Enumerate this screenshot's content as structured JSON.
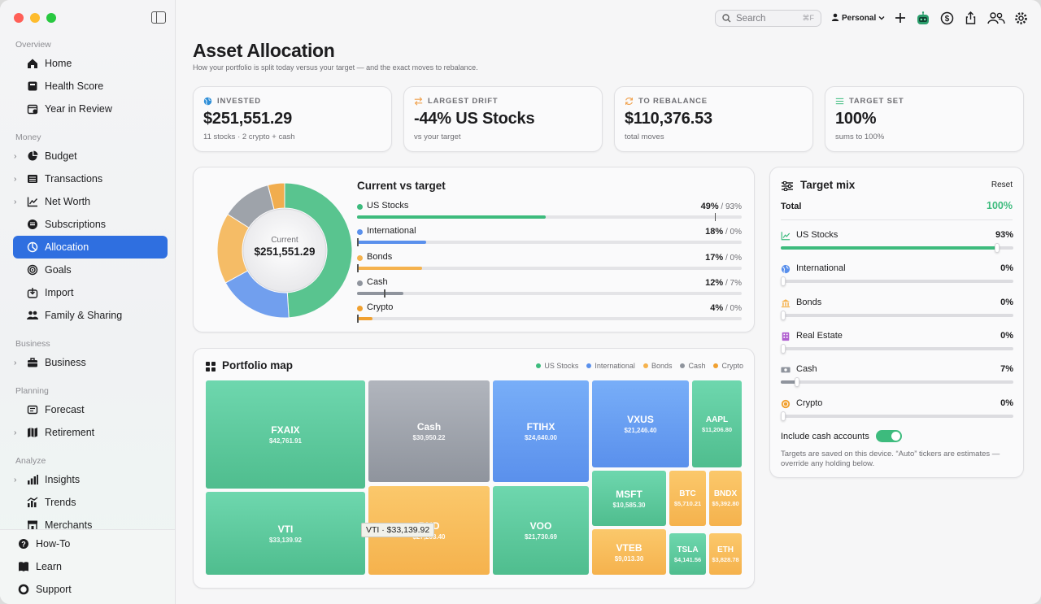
{
  "sidebar": {
    "sections": [
      {
        "title": "Overview",
        "items": [
          {
            "label": "Home",
            "icon": "home-icon",
            "chevron": false,
            "active": false
          },
          {
            "label": "Health Score",
            "icon": "health-score-icon",
            "chevron": false,
            "active": false
          },
          {
            "label": "Year in Review",
            "icon": "calendar-icon",
            "chevron": false,
            "active": false
          }
        ]
      },
      {
        "title": "Money",
        "items": [
          {
            "label": "Budget",
            "icon": "pie-icon",
            "chevron": true,
            "active": false
          },
          {
            "label": "Transactions",
            "icon": "list-icon",
            "chevron": true,
            "active": false
          },
          {
            "label": "Net Worth",
            "icon": "chart-line-icon",
            "chevron": true,
            "active": false
          },
          {
            "label": "Subscriptions",
            "icon": "subscriptions-icon",
            "chevron": false,
            "active": false
          },
          {
            "label": "Allocation",
            "icon": "allocation-icon",
            "chevron": false,
            "active": true
          },
          {
            "label": "Goals",
            "icon": "target-icon",
            "chevron": false,
            "active": false
          },
          {
            "label": "Import",
            "icon": "import-icon",
            "chevron": false,
            "active": false
          },
          {
            "label": "Family & Sharing",
            "icon": "people-icon",
            "chevron": false,
            "active": false
          }
        ]
      },
      {
        "title": "Business",
        "items": [
          {
            "label": "Business",
            "icon": "briefcase-icon",
            "chevron": true,
            "active": false
          }
        ]
      },
      {
        "title": "Planning",
        "items": [
          {
            "label": "Forecast",
            "icon": "forecast-icon",
            "chevron": false,
            "active": false
          },
          {
            "label": "Retirement",
            "icon": "map-icon",
            "chevron": true,
            "active": false
          }
        ]
      },
      {
        "title": "Analyze",
        "items": [
          {
            "label": "Insights",
            "icon": "bars-icon",
            "chevron": true,
            "active": false
          },
          {
            "label": "Trends",
            "icon": "trends-icon",
            "chevron": false,
            "active": false
          },
          {
            "label": "Merchants",
            "icon": "store-icon",
            "chevron": false,
            "active": false
          }
        ]
      }
    ],
    "bottom": [
      {
        "label": "How-To",
        "icon": "question-icon"
      },
      {
        "label": "Learn",
        "icon": "book-icon"
      },
      {
        "label": "Support",
        "icon": "lifebuoy-icon"
      }
    ]
  },
  "toolbar": {
    "search_placeholder": "Search",
    "search_shortcut": "⌘F",
    "profile": "Personal"
  },
  "page": {
    "title": "Asset Allocation",
    "subtitle": "How your portfolio is split today versus your target — and the exact moves to rebalance."
  },
  "kpis": [
    {
      "label": "INVESTED",
      "value": "$251,551.29",
      "sub": "11 stocks · 2 crypto + cash",
      "icon": "globe-icon",
      "color": "#2f8fd8"
    },
    {
      "label": "LARGEST DRIFT",
      "value": "-44% US Stocks",
      "sub": "vs your target",
      "icon": "swap-icon",
      "color": "#f0a04b"
    },
    {
      "label": "TO REBALANCE",
      "value": "$110,376.53",
      "sub": "total moves",
      "icon": "refresh-icon",
      "color": "#f0a04b"
    },
    {
      "label": "TARGET SET",
      "value": "100%",
      "sub": "sums to 100%",
      "icon": "sliders-icon",
      "color": "#3dbb7d"
    }
  ],
  "current_vs_target": {
    "title": "Current vs target",
    "center_label": "Current",
    "center_value": "$251,551.29",
    "rows": [
      {
        "name": "US Stocks",
        "current": 49,
        "target": 93,
        "current_label": "49%",
        "target_label": "/ 93%",
        "color": "#3dbb7d"
      },
      {
        "name": "International",
        "current": 18,
        "target": 0,
        "current_label": "18%",
        "target_label": "/ 0%",
        "color": "#5a90ec"
      },
      {
        "name": "Bonds",
        "current": 17,
        "target": 0,
        "current_label": "17%",
        "target_label": "/ 0%",
        "color": "#f5b24d"
      },
      {
        "name": "Cash",
        "current": 12,
        "target": 7,
        "current_label": "12%",
        "target_label": "/ 7%",
        "color": "#8f949d"
      },
      {
        "name": "Crypto",
        "current": 4,
        "target": 0,
        "current_label": "4%",
        "target_label": "/ 0%",
        "color": "#f0a030"
      }
    ]
  },
  "portfolio_map": {
    "title": "Portfolio map",
    "legend": [
      {
        "name": "US Stocks",
        "color": "#3dbb7d"
      },
      {
        "name": "International",
        "color": "#5a90ec"
      },
      {
        "name": "Bonds",
        "color": "#f5b24d"
      },
      {
        "name": "Cash",
        "color": "#8f949d"
      },
      {
        "name": "Crypto",
        "color": "#f0a030"
      }
    ],
    "tiles": [
      {
        "name": "FXAIX",
        "value": "$42,761.91"
      },
      {
        "name": "VTI",
        "value": "$33,139.92"
      },
      {
        "name": "Cash",
        "value": "$30,950.22"
      },
      {
        "name": "BND",
        "value": "$27,203.40"
      },
      {
        "name": "FTIHX",
        "value": "$24,640.00"
      },
      {
        "name": "VOO",
        "value": "$21,730.69"
      },
      {
        "name": "VXUS",
        "value": "$21,246.40"
      },
      {
        "name": "AAPL",
        "value": "$11,206.80"
      },
      {
        "name": "MSFT",
        "value": "$10,585.30"
      },
      {
        "name": "VTEB",
        "value": "$9,013.30"
      },
      {
        "name": "BTC",
        "value": "$5,710.21"
      },
      {
        "name": "BNDX",
        "value": "$5,392.80"
      },
      {
        "name": "TSLA",
        "value": "$4,141.56"
      },
      {
        "name": "ETH",
        "value": "$3,828.78"
      }
    ],
    "tooltip": "VTI · $33,139.92"
  },
  "target_mix": {
    "title": "Target mix",
    "reset_label": "Reset",
    "total_label": "Total",
    "total_value": "100%",
    "rows": [
      {
        "name": "US Stocks",
        "value_label": "93%",
        "value": 93,
        "icon": "chart-line-icon",
        "color": "#3dbb7d"
      },
      {
        "name": "International",
        "value_label": "0%",
        "value": 0,
        "icon": "globe-icon",
        "color": "#5a90ec"
      },
      {
        "name": "Bonds",
        "value_label": "0%",
        "value": 0,
        "icon": "bank-icon",
        "color": "#f5b24d"
      },
      {
        "name": "Real Estate",
        "value_label": "0%",
        "value": 0,
        "icon": "building-icon",
        "color": "#b05fd0"
      },
      {
        "name": "Cash",
        "value_label": "7%",
        "value": 7,
        "icon": "banknote-icon",
        "color": "#8f949d"
      },
      {
        "name": "Crypto",
        "value_label": "0%",
        "value": 0,
        "icon": "coin-icon",
        "color": "#f0a030"
      }
    ],
    "toggle_label": "Include cash accounts",
    "toggle_on": true,
    "note": "Targets are saved on this device. “Auto” tickers are estimates — override any holding below."
  }
}
